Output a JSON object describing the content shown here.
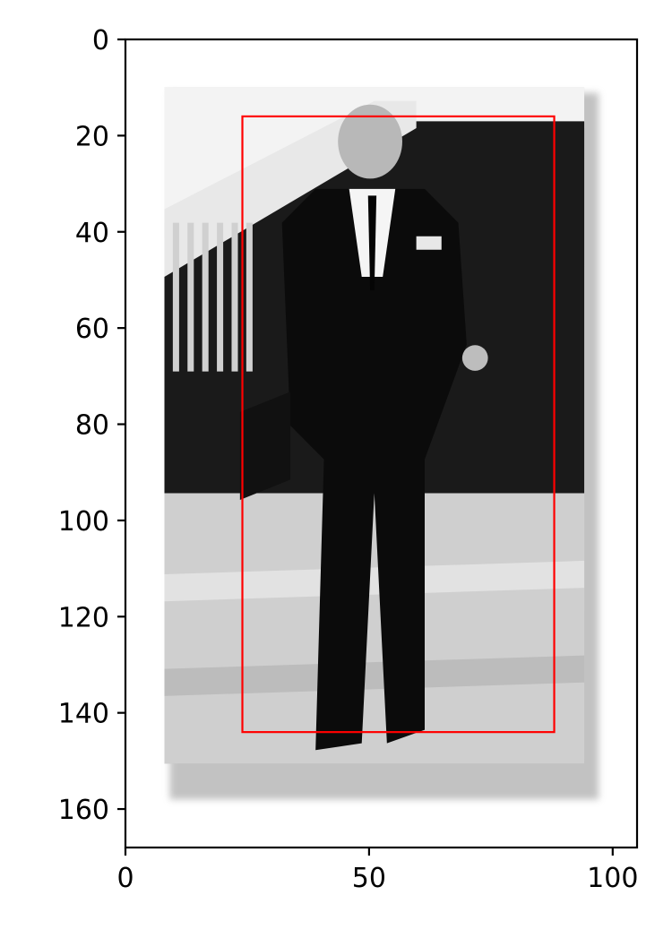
{
  "chart_data": {
    "type": "image",
    "title": "",
    "xlabel": "",
    "ylabel": "",
    "xlim": [
      0,
      105
    ],
    "ylim": [
      168,
      0
    ],
    "x_ticks": [
      0,
      50,
      100
    ],
    "y_ticks": [
      0,
      20,
      40,
      60,
      80,
      100,
      120,
      140,
      160
    ],
    "image_extent": {
      "x": [
        8,
        96
      ],
      "y": [
        10,
        158
      ]
    },
    "image_content": "grayscale photo of a man in a dark suit walking on a sidewalk",
    "bounding_box": {
      "x_min": 24,
      "x_max": 88,
      "y_min": 16,
      "y_max": 144,
      "color": "#ff0000"
    },
    "grid": false
  }
}
